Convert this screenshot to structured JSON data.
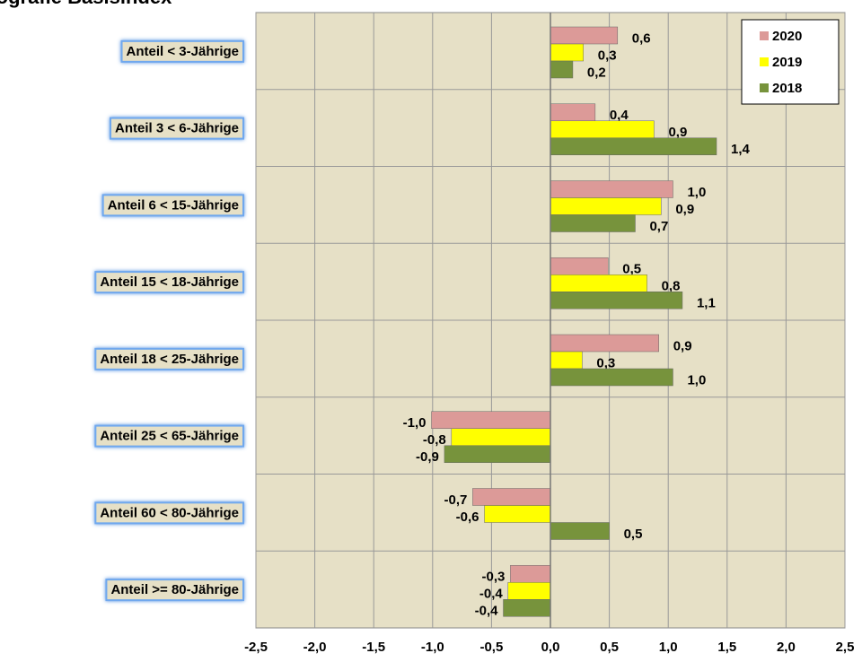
{
  "chart_data": {
    "type": "barh",
    "title": "Demografie Basisindex",
    "categories": [
      "Anteil < 3-Jährige",
      "Anteil  3 < 6-Jährige",
      "Anteil 6 < 15-Jährige",
      "Anteil 15 < 18-Jährige",
      "Anteil 18 < 25-Jährige",
      "Anteil  25 < 65-Jährige",
      "Anteil 60 < 80-Jährige",
      "Anteil >= 80-Jährige"
    ],
    "series": [
      {
        "name": "2020",
        "color": "#dc9a98",
        "values": [
          0.57,
          0.38,
          1.04,
          0.49,
          0.92,
          -1.01,
          -0.66,
          -0.34
        ],
        "value_labels": [
          "0,6",
          "0,4",
          "1,0",
          "0,5",
          "0,9",
          "-1,0",
          "-0,7",
          "-0,3"
        ]
      },
      {
        "name": "2019",
        "color": "#ffff00",
        "values": [
          0.28,
          0.88,
          0.94,
          0.82,
          0.27,
          -0.84,
          -0.56,
          -0.36
        ],
        "value_labels": [
          "0,3",
          "0,9",
          "0,9",
          "0,8",
          "0,3",
          "-0,8",
          "-0,6",
          "-0,4"
        ]
      },
      {
        "name": "2018",
        "color": "#77933c",
        "values": [
          0.19,
          1.41,
          0.72,
          1.12,
          1.04,
          -0.9,
          0.5,
          -0.4
        ],
        "value_labels": [
          "0,2",
          "1,4",
          "0,7",
          "1,1",
          "1,0",
          "-0,9",
          "0,5",
          "-0,4"
        ]
      }
    ],
    "xlim": [
      -2.5,
      2.5
    ],
    "xticks": [
      {
        "value": -2.5,
        "label": "-2,5"
      },
      {
        "value": -2,
        "label": "-2,0"
      },
      {
        "value": -1.5,
        "label": "-1,5"
      },
      {
        "value": -1,
        "label": "-1,0"
      },
      {
        "value": -0.5,
        "label": "-0,5"
      },
      {
        "value": 0,
        "label": "0,0"
      },
      {
        "value": 0.5,
        "label": "0,5"
      },
      {
        "value": 1,
        "label": "1,0"
      },
      {
        "value": 1.5,
        "label": "1,5"
      },
      {
        "value": 2,
        "label": "2,0"
      },
      {
        "value": 2.5,
        "label": "2,5"
      }
    ],
    "grid": true,
    "legend": "upper right"
  }
}
